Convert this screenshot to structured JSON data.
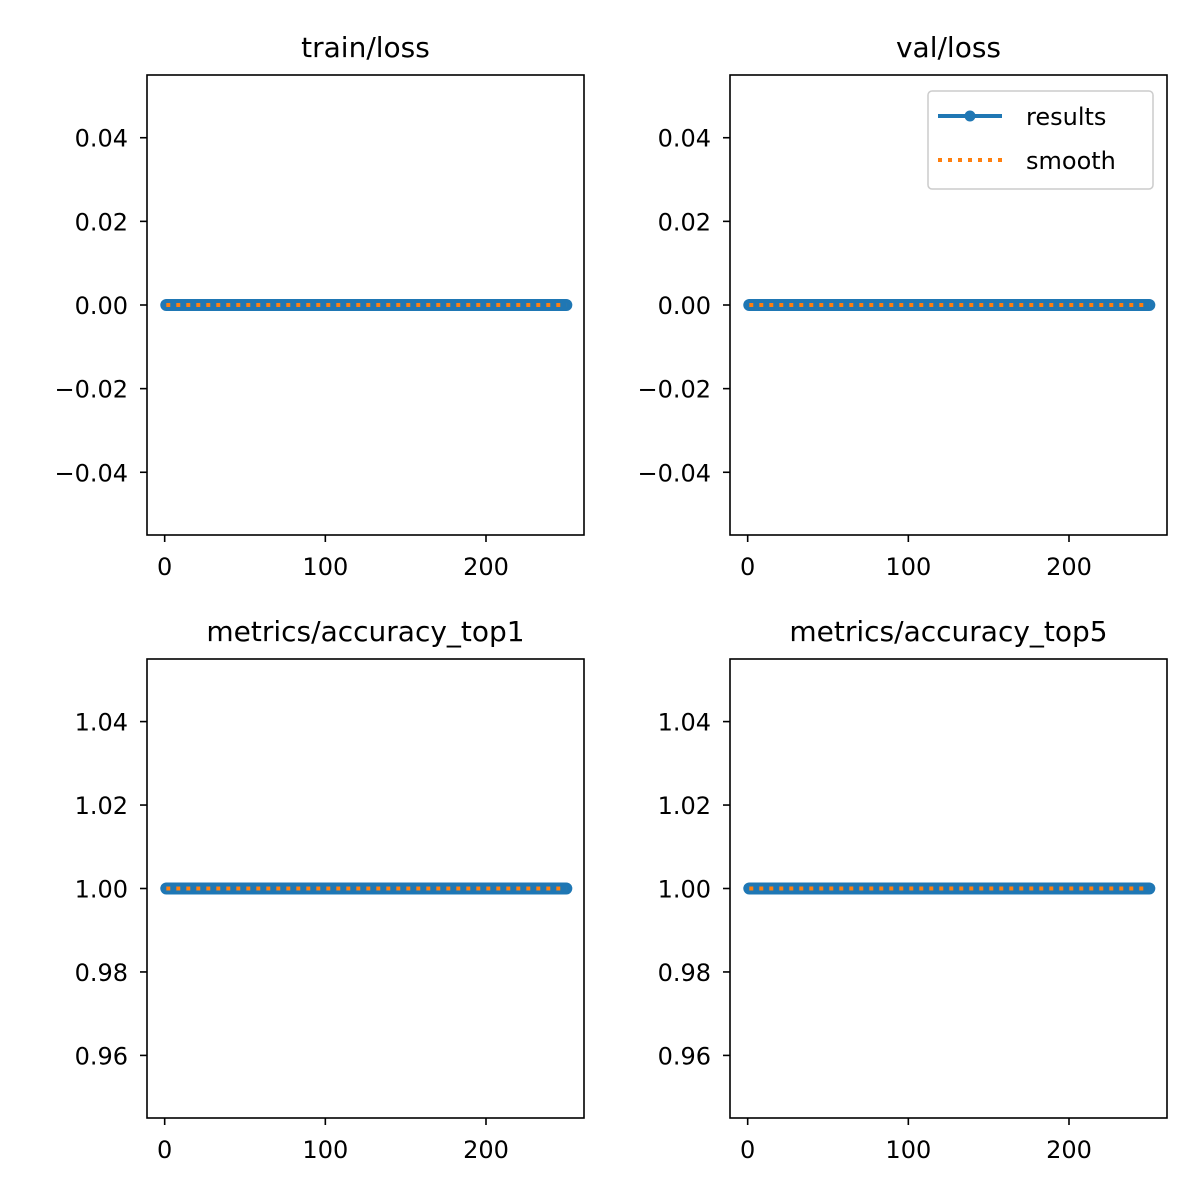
{
  "colors": {
    "results": "#1f77b4",
    "smooth": "#ff7f0e",
    "axes": "#000000"
  },
  "chart_data": [
    {
      "type": "line",
      "title": "train/loss",
      "xlim": [
        -11,
        261
      ],
      "ylim": [
        -0.055,
        0.055
      ],
      "xticks": [
        0,
        100,
        200
      ],
      "xtick_labels": [
        "0",
        "100",
        "200"
      ],
      "yticks": [
        0.04,
        0.02,
        0.0,
        -0.02,
        -0.04
      ],
      "ytick_labels": [
        "0.04",
        "0.02",
        "0.00",
        "−0.02",
        "−0.04"
      ],
      "x_range": [
        1,
        250
      ],
      "series": [
        {
          "name": "results",
          "style": "line-with-markers",
          "constant_value": 0.0
        },
        {
          "name": "smooth",
          "style": "dotted",
          "constant_value": 0.0
        }
      ],
      "legend": false
    },
    {
      "type": "line",
      "title": "val/loss",
      "xlim": [
        -11,
        261
      ],
      "ylim": [
        -0.055,
        0.055
      ],
      "xticks": [
        0,
        100,
        200
      ],
      "xtick_labels": [
        "0",
        "100",
        "200"
      ],
      "yticks": [
        0.04,
        0.02,
        0.0,
        -0.02,
        -0.04
      ],
      "ytick_labels": [
        "0.04",
        "0.02",
        "0.00",
        "−0.02",
        "−0.04"
      ],
      "x_range": [
        1,
        250
      ],
      "series": [
        {
          "name": "results",
          "style": "line-with-markers",
          "constant_value": 0.0
        },
        {
          "name": "smooth",
          "style": "dotted",
          "constant_value": 0.0
        }
      ],
      "legend": true,
      "legend_position": "top-right"
    },
    {
      "type": "line",
      "title": "metrics/accuracy_top1",
      "xlim": [
        -11,
        261
      ],
      "ylim": [
        0.945,
        1.055
      ],
      "xticks": [
        0,
        100,
        200
      ],
      "xtick_labels": [
        "0",
        "100",
        "200"
      ],
      "yticks": [
        1.04,
        1.02,
        1.0,
        0.98,
        0.96
      ],
      "ytick_labels": [
        "1.04",
        "1.02",
        "1.00",
        "0.98",
        "0.96"
      ],
      "x_range": [
        1,
        250
      ],
      "series": [
        {
          "name": "results",
          "style": "line-with-markers",
          "constant_value": 1.0
        },
        {
          "name": "smooth",
          "style": "dotted",
          "constant_value": 1.0
        }
      ],
      "legend": false
    },
    {
      "type": "line",
      "title": "metrics/accuracy_top5",
      "xlim": [
        -11,
        261
      ],
      "ylim": [
        0.945,
        1.055
      ],
      "xticks": [
        0,
        100,
        200
      ],
      "xtick_labels": [
        "0",
        "100",
        "200"
      ],
      "yticks": [
        1.04,
        1.02,
        1.0,
        0.98,
        0.96
      ],
      "ytick_labels": [
        "1.04",
        "1.02",
        "1.00",
        "0.98",
        "0.96"
      ],
      "x_range": [
        1,
        250
      ],
      "series": [
        {
          "name": "results",
          "style": "line-with-markers",
          "constant_value": 1.0
        },
        {
          "name": "smooth",
          "style": "dotted",
          "constant_value": 1.0
        }
      ],
      "legend": false
    }
  ]
}
